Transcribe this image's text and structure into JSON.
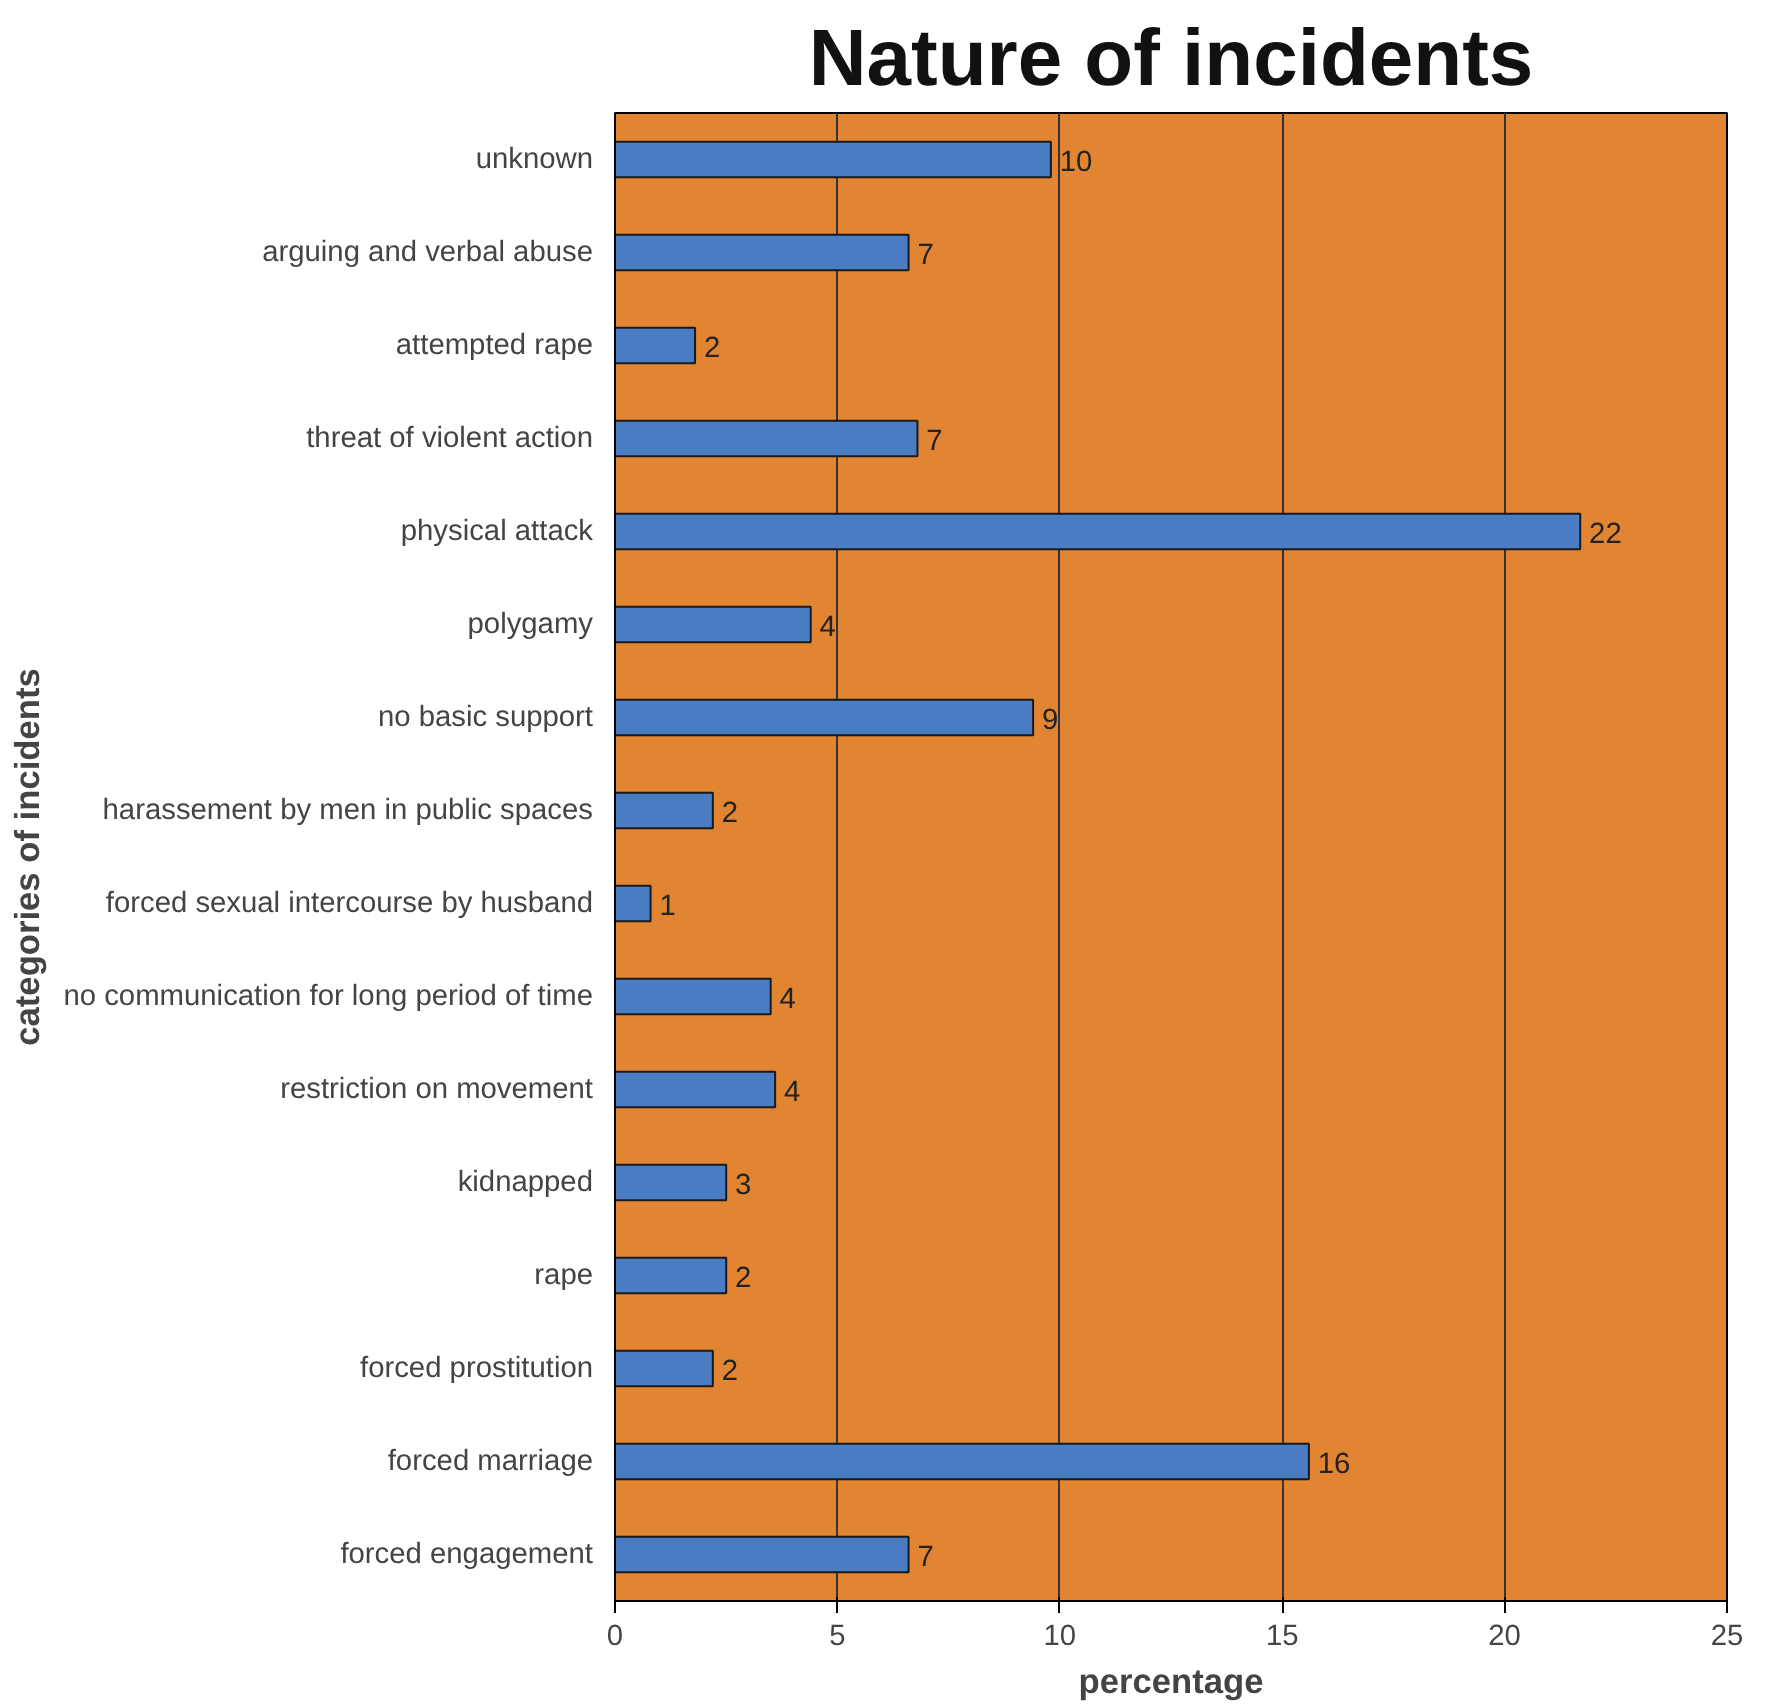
{
  "chart_data": {
    "type": "bar",
    "orientation": "horizontal",
    "title": "Nature of incidents",
    "xlabel": "percentage",
    "ylabel": "categories of incidents",
    "categories": [
      "unknown",
      "arguing and verbal abuse",
      "attempted rape",
      "threat of violent action",
      "physical attack",
      "polygamy",
      "no basic support",
      "harassement by men in public spaces",
      "forced sexual intercourse by husband",
      "no communication for long period of time",
      "restriction on movement",
      "kidnapped",
      "rape",
      "forced prostitution",
      "forced marriage",
      "forced engagement"
    ],
    "values": [
      9.8,
      6.6,
      1.8,
      6.8,
      21.7,
      4.4,
      9.4,
      2.2,
      0.8,
      3.5,
      3.6,
      2.5,
      2.5,
      2.2,
      15.6,
      6.6
    ],
    "value_labels": [
      "10",
      "7",
      "2",
      "7",
      "22",
      "4",
      "9",
      "2",
      "1",
      "4",
      "4",
      "3",
      "2",
      "2",
      "16",
      "7"
    ],
    "color": "#4a7cc4",
    "xlim": [
      0,
      25
    ],
    "xticks": [
      0,
      5,
      10,
      15,
      20,
      25
    ],
    "grid": "x"
  }
}
